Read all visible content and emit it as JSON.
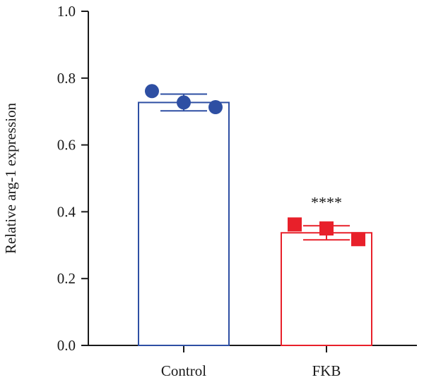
{
  "chart_data": {
    "type": "bar",
    "title": "",
    "xlabel": "",
    "ylabel": "Relative arg-1 expression",
    "ylim": [
      0,
      1.0
    ],
    "yticks": [
      "0.0",
      "0.2",
      "0.4",
      "0.6",
      "0.8",
      "1.0"
    ],
    "categories": [
      "Control",
      "FKB"
    ],
    "values": [
      0.727,
      0.337
    ],
    "error": [
      0.025,
      0.021
    ],
    "points": [
      [
        0.761,
        0.727,
        0.713
      ],
      [
        0.362,
        0.35,
        0.318
      ]
    ],
    "annotations": [
      "",
      "****"
    ],
    "colors": [
      "#2e4fa3",
      "#e8202a"
    ],
    "markers": [
      "circle",
      "square"
    ],
    "grid": false,
    "legend": "none"
  }
}
